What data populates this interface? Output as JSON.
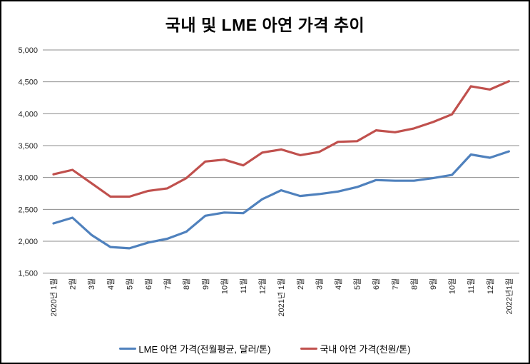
{
  "window": {
    "title": "국내 및 LME 아연 가격 추이"
  },
  "chart_data": {
    "type": "line",
    "title": "국내 및 LME 아연 가격 추이",
    "categories": [
      "2020년 1월",
      "2월",
      "3월",
      "4월",
      "5월",
      "6월",
      "7월",
      "8월",
      "9월",
      "10월",
      "11월",
      "12월",
      "2021년 1월",
      "2월",
      "3월",
      "4월",
      "5월",
      "6월",
      "7월",
      "8월",
      "9월",
      "10월",
      "11월",
      "12월",
      "2022년1월"
    ],
    "series": [
      {
        "name": "LME 아연 가격(전월평균, 달러/톤)",
        "color": "#4F81BD",
        "values": [
          2280,
          2370,
          2100,
          1910,
          1890,
          1980,
          2040,
          2150,
          2400,
          2450,
          2440,
          2660,
          2800,
          2710,
          2740,
          2780,
          2850,
          2960,
          2950,
          2950,
          2990,
          3040,
          3360,
          3310,
          3410
        ]
      },
      {
        "name": "국내 아연 가격(천원/톤)",
        "color": "#C0504D",
        "values": [
          3050,
          3120,
          2910,
          2700,
          2700,
          2790,
          2830,
          2990,
          3250,
          3280,
          3190,
          3390,
          3440,
          3350,
          3400,
          3560,
          3570,
          3740,
          3710,
          3770,
          3870,
          3990,
          4430,
          4380,
          4510
        ]
      }
    ],
    "xlabel": "",
    "ylabel": "",
    "ylim": [
      1500,
      5000
    ],
    "ytick_step": 500,
    "ytick_labels": [
      "1,500",
      "2,000",
      "2,500",
      "3,000",
      "3,500",
      "4,000",
      "4,500",
      "5,000"
    ],
    "grid": true,
    "legend_position": "bottom"
  },
  "styles": {
    "grid_color": "#8C8C8C",
    "axis_text_color": "#262626",
    "background_color": "#FFFFFF",
    "border_color": "#000000"
  }
}
